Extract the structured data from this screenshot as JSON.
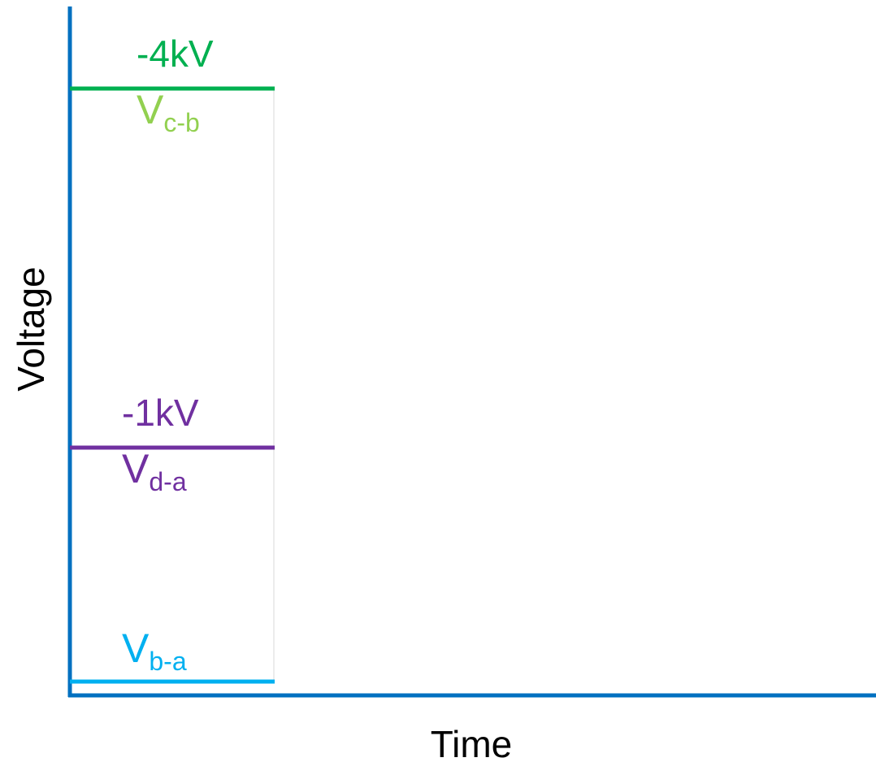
{
  "axes": {
    "y_label": "Voltage",
    "x_label": "Time"
  },
  "levels": [
    {
      "value_label": "-4kV",
      "name": "V",
      "subscript": "c-b",
      "line_color": "#00b050",
      "value_color": "#00b050",
      "name_color": "#92d050"
    },
    {
      "value_label": "-1kV",
      "name": "V",
      "subscript": "d-a",
      "line_color": "#7030a0",
      "value_color": "#7030a0",
      "name_color": "#7030a0"
    },
    {
      "name": "V",
      "subscript": "b-a",
      "line_color": "#00b0f0",
      "name_color": "#00b0f0"
    }
  ]
}
